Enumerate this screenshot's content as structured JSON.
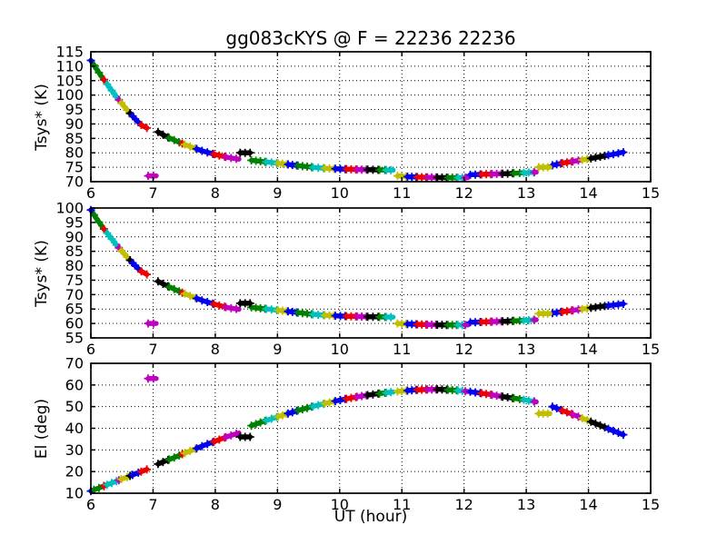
{
  "chart_data": {
    "type": "scatter",
    "title": "gg083cKYS @ F = 22236 22236",
    "xlabel": "UT (hour)",
    "xlim": [
      6,
      15
    ],
    "xticks": [
      6,
      7,
      8,
      9,
      10,
      11,
      12,
      13,
      14,
      15
    ],
    "grid": "dotted",
    "colors": {
      "b": "#0000ee",
      "g": "#008000",
      "r": "#ee0000",
      "c": "#00bfbf",
      "m": "#bf00bf",
      "y": "#bfbf00",
      "k": "#000000"
    },
    "scans": [
      [
        6.0,
        6.05,
        "b"
      ],
      [
        6.05,
        6.21,
        "g"
      ],
      [
        6.21,
        6.26,
        "r"
      ],
      [
        6.26,
        6.45,
        "c"
      ],
      [
        6.45,
        6.49,
        "m"
      ],
      [
        6.49,
        6.63,
        "y"
      ],
      [
        6.63,
        6.67,
        "k"
      ],
      [
        6.67,
        6.81,
        "b"
      ],
      [
        6.81,
        6.9,
        "r"
      ],
      [
        7.08,
        7.24,
        "k"
      ],
      [
        7.26,
        7.46,
        "g"
      ],
      [
        7.47,
        7.5,
        "r"
      ],
      [
        7.51,
        7.68,
        "y"
      ],
      [
        7.7,
        7.96,
        "b"
      ],
      [
        7.98,
        8.15,
        "r"
      ],
      [
        8.17,
        8.38,
        "m"
      ],
      [
        8.58,
        8.8,
        "g"
      ],
      [
        8.82,
        8.99,
        "c"
      ],
      [
        9.01,
        9.15,
        "y"
      ],
      [
        9.17,
        9.31,
        "b"
      ],
      [
        9.33,
        9.55,
        "g"
      ],
      [
        9.57,
        9.74,
        "c"
      ],
      [
        9.76,
        9.91,
        "y"
      ],
      [
        9.93,
        10.09,
        "b"
      ],
      [
        10.11,
        10.26,
        "r"
      ],
      [
        10.28,
        10.43,
        "m"
      ],
      [
        10.45,
        10.62,
        "k"
      ],
      [
        10.64,
        10.73,
        "g"
      ],
      [
        10.75,
        10.86,
        "c"
      ],
      [
        10.93,
        11.07,
        "y"
      ],
      [
        11.09,
        11.23,
        "b"
      ],
      [
        11.25,
        11.39,
        "r"
      ],
      [
        11.41,
        11.55,
        "m"
      ],
      [
        11.57,
        11.72,
        "k"
      ],
      [
        11.74,
        11.88,
        "g"
      ],
      [
        11.9,
        12.01,
        "c"
      ],
      [
        12.02,
        12.06,
        "m"
      ],
      [
        12.1,
        12.26,
        "b"
      ],
      [
        12.28,
        12.43,
        "r"
      ],
      [
        12.45,
        12.6,
        "m"
      ],
      [
        12.62,
        12.78,
        "k"
      ],
      [
        12.8,
        12.94,
        "g"
      ],
      [
        12.96,
        13.12,
        "c"
      ],
      [
        13.13,
        13.16,
        "m"
      ],
      [
        13.42,
        13.56,
        "b"
      ],
      [
        13.58,
        13.73,
        "r"
      ],
      [
        13.75,
        13.88,
        "m"
      ],
      [
        13.9,
        14.02,
        "y"
      ],
      [
        14.04,
        14.3,
        "k"
      ],
      [
        14.32,
        14.56,
        "b"
      ]
    ],
    "subplots": [
      {
        "ylabel": "Tsys* (K)",
        "ylim": [
          70,
          115
        ],
        "yticks": [
          70,
          75,
          80,
          85,
          90,
          95,
          100,
          105,
          110,
          115
        ],
        "curve": [
          [
            6.0,
            112.0
          ],
          [
            6.1,
            108.7
          ],
          [
            6.2,
            105.6
          ],
          [
            6.3,
            102.6
          ],
          [
            6.4,
            99.7
          ],
          [
            6.5,
            97.0
          ],
          [
            6.6,
            94.4
          ],
          [
            6.7,
            92.0
          ],
          [
            6.8,
            89.8
          ],
          [
            6.9,
            88.6
          ],
          [
            7.08,
            87.2
          ],
          [
            7.2,
            85.8
          ],
          [
            7.4,
            83.8
          ],
          [
            7.6,
            82.1
          ],
          [
            7.8,
            80.6
          ],
          [
            8.0,
            79.4
          ],
          [
            8.2,
            78.4
          ],
          [
            8.38,
            77.8
          ],
          [
            8.58,
            77.4
          ],
          [
            8.8,
            76.9
          ],
          [
            9.0,
            76.4
          ],
          [
            9.2,
            75.9
          ],
          [
            9.4,
            75.4
          ],
          [
            9.6,
            74.9
          ],
          [
            9.8,
            74.6
          ],
          [
            10.0,
            74.4
          ],
          [
            10.3,
            74.2
          ],
          [
            10.86,
            74.0
          ],
          [
            10.93,
            72.0
          ],
          [
            11.1,
            71.7
          ],
          [
            11.4,
            71.5
          ],
          [
            11.7,
            71.4
          ],
          [
            12.06,
            71.4
          ],
          [
            12.1,
            72.4
          ],
          [
            12.4,
            72.6
          ],
          [
            12.7,
            72.8
          ],
          [
            13.0,
            73.1
          ],
          [
            13.16,
            73.3
          ],
          [
            13.42,
            75.7
          ],
          [
            13.6,
            76.5
          ],
          [
            13.8,
            77.2
          ],
          [
            14.0,
            77.9
          ],
          [
            14.2,
            78.7
          ],
          [
            14.4,
            79.5
          ],
          [
            14.56,
            80.2
          ]
        ],
        "outliers": [
          [
            6.92,
            7.05,
            "m",
            72.0
          ],
          [
            8.4,
            8.56,
            "k",
            80.0
          ],
          [
            13.2,
            13.38,
            "y",
            75.0
          ]
        ]
      },
      {
        "ylabel": "Tsys* (K)",
        "ylim": [
          55,
          100
        ],
        "yticks": [
          55,
          60,
          65,
          70,
          75,
          80,
          85,
          90,
          95,
          100
        ],
        "curve": [
          [
            6.0,
            99.3
          ],
          [
            6.1,
            96.0
          ],
          [
            6.2,
            93.0
          ],
          [
            6.3,
            90.2
          ],
          [
            6.4,
            87.5
          ],
          [
            6.5,
            85.0
          ],
          [
            6.6,
            82.6
          ],
          [
            6.7,
            80.3
          ],
          [
            6.8,
            78.2
          ],
          [
            6.9,
            77.0
          ],
          [
            7.08,
            74.6
          ],
          [
            7.2,
            73.3
          ],
          [
            7.4,
            71.3
          ],
          [
            7.6,
            69.5
          ],
          [
            7.8,
            67.9
          ],
          [
            8.0,
            66.6
          ],
          [
            8.2,
            65.5
          ],
          [
            8.38,
            64.9
          ],
          [
            8.58,
            65.6
          ],
          [
            8.8,
            65.1
          ],
          [
            9.0,
            64.6
          ],
          [
            9.2,
            64.1
          ],
          [
            9.4,
            63.6
          ],
          [
            9.6,
            63.1
          ],
          [
            9.8,
            62.8
          ],
          [
            10.0,
            62.6
          ],
          [
            10.3,
            62.4
          ],
          [
            10.86,
            62.2
          ],
          [
            10.93,
            60.0
          ],
          [
            11.1,
            59.8
          ],
          [
            11.4,
            59.6
          ],
          [
            11.7,
            59.5
          ],
          [
            12.06,
            59.5
          ],
          [
            12.1,
            60.4
          ],
          [
            12.4,
            60.6
          ],
          [
            12.7,
            60.8
          ],
          [
            13.0,
            61.1
          ],
          [
            13.16,
            61.3
          ],
          [
            13.42,
            63.6
          ],
          [
            13.6,
            64.1
          ],
          [
            13.8,
            64.7
          ],
          [
            14.0,
            65.3
          ],
          [
            14.2,
            65.9
          ],
          [
            14.4,
            66.4
          ],
          [
            14.56,
            66.8
          ]
        ],
        "outliers": [
          [
            6.92,
            7.05,
            "m",
            60.0
          ],
          [
            8.4,
            8.56,
            "k",
            67.0
          ],
          [
            13.2,
            13.38,
            "y",
            63.4
          ]
        ]
      },
      {
        "ylabel": "El (deg)",
        "ylim": [
          10,
          70
        ],
        "yticks": [
          10,
          20,
          30,
          40,
          50,
          60,
          70
        ],
        "curve": [
          [
            6.0,
            11.0
          ],
          [
            6.9,
            21.0
          ],
          [
            7.08,
            23.5
          ],
          [
            7.4,
            27.2
          ],
          [
            7.8,
            31.9
          ],
          [
            8.2,
            36.2
          ],
          [
            8.38,
            37.8
          ],
          [
            8.58,
            41.2
          ],
          [
            8.8,
            43.4
          ],
          [
            9.0,
            45.3
          ],
          [
            9.2,
            47.1
          ],
          [
            9.4,
            48.8
          ],
          [
            9.6,
            50.3
          ],
          [
            9.8,
            51.7
          ],
          [
            10.0,
            53.0
          ],
          [
            10.2,
            54.1
          ],
          [
            10.4,
            55.1
          ],
          [
            10.6,
            55.9
          ],
          [
            10.8,
            56.6
          ],
          [
            11.0,
            57.2
          ],
          [
            11.2,
            57.7
          ],
          [
            11.4,
            57.9
          ],
          [
            11.6,
            58.0
          ],
          [
            11.8,
            57.7
          ],
          [
            12.0,
            57.2
          ],
          [
            12.2,
            56.5
          ],
          [
            12.4,
            55.7
          ],
          [
            12.6,
            54.7
          ],
          [
            12.8,
            53.9
          ],
          [
            13.0,
            53.0
          ],
          [
            13.16,
            52.2
          ],
          [
            13.42,
            50.0
          ],
          [
            13.6,
            48.0
          ],
          [
            13.8,
            45.8
          ],
          [
            14.0,
            43.5
          ],
          [
            14.2,
            41.2
          ],
          [
            14.4,
            38.8
          ],
          [
            14.56,
            37.0
          ]
        ],
        "outliers": [
          [
            6.92,
            7.05,
            "m",
            63.0
          ],
          [
            8.4,
            8.56,
            "k",
            36.0
          ],
          [
            13.2,
            13.38,
            "y",
            46.8
          ]
        ]
      }
    ]
  }
}
